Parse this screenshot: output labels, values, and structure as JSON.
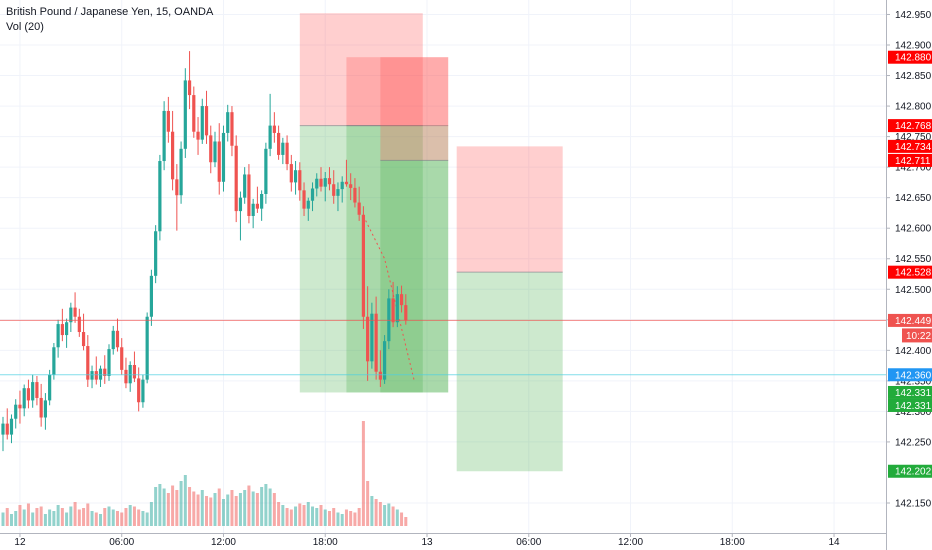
{
  "header": {
    "title": "British Pound / Japanese Yen, 15, OANDA",
    "volume_label": "Vol (20)"
  },
  "chart_data": {
    "type": "candlestick",
    "title": "British Pound / Japanese Yen, 15, OANDA",
    "ylim": [
      142.12,
      142.95
    ],
    "y_ticks": [
      142.15,
      142.25,
      142.3,
      142.35,
      142.4,
      142.45,
      142.5,
      142.55,
      142.6,
      142.65,
      142.7,
      142.75,
      142.8,
      142.85,
      142.9,
      142.95
    ],
    "y_tick_labels": [
      "142.150",
      "142.250",
      "142.300",
      "142.350",
      "142.400",
      "142.450",
      "142.500",
      "142.550",
      "142.600",
      "142.650",
      "142.700",
      "142.750",
      "142.800",
      "142.850",
      "142.900",
      "142.950"
    ],
    "x_axis": {
      "bars_per_day": 96,
      "labels": [
        {
          "bar": 4,
          "text": "12"
        },
        {
          "bar": 28,
          "text": "06:00"
        },
        {
          "bar": 52,
          "text": "12:00"
        },
        {
          "bar": 76,
          "text": "18:00"
        },
        {
          "bar": 100,
          "text": "13"
        },
        {
          "bar": 124,
          "text": "06:00"
        },
        {
          "bar": 148,
          "text": "12:00"
        },
        {
          "bar": 172,
          "text": "18:00"
        },
        {
          "bar": 196,
          "text": "14"
        }
      ]
    },
    "candles": [
      [
        142.262,
        142.291,
        142.235,
        142.28
      ],
      [
        142.28,
        142.305,
        142.254,
        142.262
      ],
      [
        142.262,
        142.295,
        142.248,
        142.288
      ],
      [
        142.288,
        142.32,
        142.272,
        142.311
      ],
      [
        142.311,
        142.334,
        142.28,
        142.305
      ],
      [
        142.305,
        142.344,
        142.292,
        142.338
      ],
      [
        142.338,
        142.352,
        142.305,
        142.318
      ],
      [
        142.318,
        142.36,
        142.306,
        142.348
      ],
      [
        142.348,
        142.358,
        142.31,
        142.322
      ],
      [
        142.322,
        142.345,
        142.275,
        142.29
      ],
      [
        142.29,
        142.33,
        142.27,
        142.318
      ],
      [
        142.318,
        142.368,
        142.31,
        142.36
      ],
      [
        142.36,
        142.412,
        142.352,
        142.405
      ],
      [
        142.405,
        142.45,
        142.388,
        142.443
      ],
      [
        142.443,
        142.468,
        142.415,
        142.425
      ],
      [
        142.425,
        142.452,
        142.404,
        142.446
      ],
      [
        142.446,
        142.478,
        142.43,
        142.47
      ],
      [
        142.47,
        142.495,
        142.445,
        142.455
      ],
      [
        142.455,
        142.468,
        142.422,
        142.43
      ],
      [
        142.43,
        142.46,
        142.4,
        142.407
      ],
      [
        142.407,
        142.425,
        142.34,
        142.352
      ],
      [
        142.352,
        142.375,
        142.338,
        142.366
      ],
      [
        142.366,
        142.39,
        142.344,
        142.352
      ],
      [
        142.352,
        142.375,
        142.34,
        142.37
      ],
      [
        142.37,
        142.392,
        142.345,
        142.358
      ],
      [
        142.358,
        142.41,
        142.35,
        142.402
      ],
      [
        142.402,
        142.44,
        142.393,
        142.432
      ],
      [
        142.432,
        142.452,
        142.398,
        142.405
      ],
      [
        142.405,
        142.42,
        142.36,
        142.368
      ],
      [
        142.368,
        142.388,
        142.338,
        142.346
      ],
      [
        142.346,
        142.382,
        142.332,
        142.376
      ],
      [
        142.376,
        142.398,
        142.348,
        142.354
      ],
      [
        142.354,
        142.372,
        142.3,
        142.315
      ],
      [
        142.315,
        142.36,
        142.306,
        142.352
      ],
      [
        142.352,
        142.462,
        142.346,
        142.455
      ],
      [
        142.455,
        142.532,
        142.44,
        142.522
      ],
      [
        142.522,
        142.605,
        142.51,
        142.595
      ],
      [
        142.595,
        142.72,
        142.58,
        142.71
      ],
      [
        142.71,
        142.808,
        142.695,
        142.792
      ],
      [
        142.792,
        142.815,
        142.74,
        142.758
      ],
      [
        142.758,
        142.792,
        142.662,
        142.68
      ],
      [
        142.68,
        142.705,
        142.596,
        142.654
      ],
      [
        142.654,
        142.742,
        142.64,
        142.73
      ],
      [
        142.73,
        142.862,
        142.715,
        142.842
      ],
      [
        142.842,
        142.89,
        142.795,
        142.818
      ],
      [
        142.818,
        142.832,
        142.748,
        142.758
      ],
      [
        142.758,
        142.782,
        142.72,
        142.745
      ],
      [
        142.745,
        142.812,
        142.738,
        142.8
      ],
      [
        142.8,
        142.825,
        142.738,
        142.752
      ],
      [
        142.752,
        142.768,
        142.69,
        142.708
      ],
      [
        142.708,
        142.758,
        142.7,
        142.742
      ],
      [
        142.742,
        142.772,
        142.655,
        142.676
      ],
      [
        142.676,
        142.768,
        142.66,
        142.756
      ],
      [
        142.756,
        142.802,
        142.742,
        142.79
      ],
      [
        142.79,
        142.8,
        142.718,
        142.735
      ],
      [
        142.735,
        142.752,
        142.61,
        142.628
      ],
      [
        142.628,
        142.66,
        142.58,
        142.65
      ],
      [
        142.65,
        142.7,
        142.64,
        142.688
      ],
      [
        142.688,
        142.705,
        142.608,
        142.62
      ],
      [
        142.62,
        142.648,
        142.6,
        142.64
      ],
      [
        142.64,
        142.668,
        142.625,
        142.632
      ],
      [
        142.632,
        142.662,
        142.612,
        142.656
      ],
      [
        142.656,
        142.74,
        142.64,
        142.73
      ],
      [
        142.73,
        142.82,
        142.718,
        142.768
      ],
      [
        142.768,
        142.79,
        142.74,
        142.756
      ],
      [
        142.756,
        142.768,
        142.712,
        142.72
      ],
      [
        142.72,
        142.748,
        142.705,
        142.74
      ],
      [
        142.74,
        142.752,
        142.695,
        142.705
      ],
      [
        142.705,
        142.72,
        142.66,
        142.675
      ],
      [
        142.675,
        142.71,
        142.655,
        142.695
      ],
      [
        142.695,
        142.708,
        142.645,
        142.662
      ],
      [
        142.662,
        142.675,
        142.62,
        142.632
      ],
      [
        142.632,
        142.65,
        142.612,
        142.645
      ],
      [
        142.645,
        142.675,
        142.628,
        142.665
      ],
      [
        142.665,
        142.69,
        142.652,
        142.681
      ],
      [
        142.681,
        142.7,
        142.66,
        142.668
      ],
      [
        142.668,
        142.692,
        142.644,
        142.682
      ],
      [
        142.682,
        142.7,
        142.662,
        142.672
      ],
      [
        142.672,
        142.695,
        142.64,
        142.653
      ],
      [
        142.653,
        142.675,
        142.628,
        142.664
      ],
      [
        142.664,
        142.685,
        142.642,
        142.676
      ],
      [
        142.676,
        142.712,
        142.668,
        142.672
      ],
      [
        142.672,
        142.69,
        142.646,
        142.666
      ],
      [
        142.666,
        142.682,
        142.634,
        142.642
      ],
      [
        142.642,
        142.668,
        142.612,
        142.622
      ],
      [
        142.622,
        142.636,
        142.435,
        142.455
      ],
      [
        142.455,
        142.505,
        142.35,
        142.382
      ],
      [
        142.382,
        142.478,
        142.37,
        142.46
      ],
      [
        142.46,
        142.488,
        142.352,
        142.365
      ],
      [
        142.365,
        142.4,
        142.34,
        142.352
      ],
      [
        142.352,
        142.425,
        142.345,
        142.415
      ],
      [
        142.415,
        142.5,
        142.402,
        142.485
      ],
      [
        142.485,
        142.512,
        142.438,
        142.446
      ],
      [
        142.446,
        142.505,
        142.438,
        142.492
      ],
      [
        142.492,
        142.506,
        142.462,
        142.474
      ],
      [
        142.474,
        142.492,
        142.442,
        142.449
      ]
    ],
    "volume": [
      9,
      12,
      8,
      10,
      14,
      11,
      15,
      9,
      12,
      13,
      8,
      11,
      10,
      14,
      12,
      9,
      13,
      16,
      11,
      12,
      15,
      10,
      9,
      8,
      12,
      13,
      11,
      10,
      9,
      12,
      14,
      13,
      11,
      10,
      9,
      16,
      26,
      28,
      25,
      22,
      27,
      24,
      30,
      34,
      26,
      23,
      21,
      24,
      20,
      19,
      22,
      25,
      18,
      21,
      24,
      20,
      22,
      24,
      27,
      23,
      22,
      26,
      28,
      25,
      22,
      16,
      14,
      12,
      11,
      13,
      15,
      14,
      16,
      13,
      12,
      14,
      11,
      10,
      12,
      9,
      8,
      11,
      10,
      9,
      12,
      70,
      30,
      20,
      18,
      16,
      14,
      15,
      13,
      11,
      9,
      6
    ],
    "volume_colors": [
      "up",
      "down",
      "up",
      "up",
      "down",
      "up",
      "down",
      "up",
      "down",
      "down",
      "up",
      "up",
      "up",
      "up",
      "down",
      "up",
      "up",
      "down",
      "down",
      "down",
      "down",
      "up",
      "down",
      "up",
      "down",
      "up",
      "up",
      "down",
      "down",
      "down",
      "up",
      "down",
      "down",
      "up",
      "up",
      "up",
      "up",
      "up",
      "up",
      "down",
      "down",
      "down",
      "up",
      "up",
      "down",
      "down",
      "down",
      "up",
      "down",
      "down",
      "up",
      "down",
      "up",
      "up",
      "down",
      "down",
      "up",
      "up",
      "down",
      "up",
      "down",
      "up",
      "up",
      "up",
      "down",
      "down",
      "up",
      "down",
      "down",
      "up",
      "down",
      "down",
      "up",
      "up",
      "up",
      "down",
      "up",
      "down",
      "down",
      "up",
      "up",
      "down",
      "down",
      "down",
      "down",
      "down",
      "down",
      "up",
      "down",
      "down",
      "up",
      "up",
      "down",
      "up",
      "down",
      "down"
    ],
    "positions": [
      {
        "name": "short-position-1",
        "entry_price": 142.768,
        "stop_price": 142.952,
        "target_price": 142.331,
        "start_bar": 70,
        "end_bar": 99
      },
      {
        "name": "short-position-2",
        "entry_price": 142.768,
        "stop_price": 142.88,
        "target_price": 142.331,
        "start_bar": 81,
        "end_bar": 105
      },
      {
        "name": "short-position-3",
        "entry_price": 142.711,
        "stop_price": 142.88,
        "target_price": 142.331,
        "start_bar": 89,
        "end_bar": 105
      },
      {
        "name": "long-position",
        "entry_price": 142.528,
        "stop_price": 142.734,
        "target_price": 142.202,
        "start_bar": 107,
        "end_bar": 132
      }
    ],
    "dotted_path": [
      [
        85,
        142.62
      ],
      [
        90,
        142.55
      ],
      [
        97,
        142.35
      ]
    ],
    "horizontal_lines": [
      {
        "name": "current-price-line",
        "price": 142.449,
        "color": "#ef5350"
      },
      {
        "name": "cyan-horizontal-line",
        "price": 142.36,
        "color": "#4dd0e1"
      }
    ],
    "price_tags": [
      {
        "price": 142.88,
        "text": "142.880",
        "color": "#ff0000"
      },
      {
        "price": 142.768,
        "text": "142.768",
        "color": "#ff0000"
      },
      {
        "price": 142.734,
        "text": "142.734",
        "color": "#ff0000"
      },
      {
        "price": 142.711,
        "text": "142.711",
        "color": "#ff0000"
      },
      {
        "price": 142.528,
        "text": "142.528",
        "color": "#ff0000"
      },
      {
        "price": 142.449,
        "text": "142.449",
        "color": "#ef5350"
      },
      {
        "price": 142.36,
        "text": "142.360",
        "color": "#2196f3"
      },
      {
        "price": 142.331,
        "text": "142.331",
        "color": "#22ab3b"
      },
      {
        "price": 142.331,
        "text": "142.331",
        "color": "#22ab3b"
      },
      {
        "price": 142.202,
        "text": "142.202",
        "color": "#22ab3b"
      }
    ],
    "countdown": "10:22",
    "colors": {
      "up": "#26a69a",
      "down": "#ef5350",
      "profit": "#4caf50",
      "loss": "#ff5252",
      "grid": "#f0f3fa",
      "axis_text": "#131722"
    }
  }
}
